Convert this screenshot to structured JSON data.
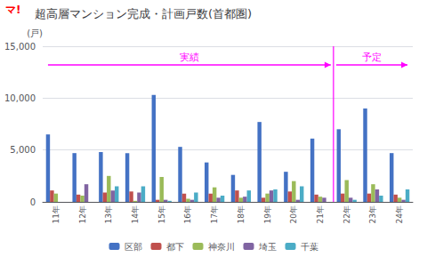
{
  "chart_data": {
    "type": "bar",
    "title": "超高層マンション完成・計画戸数(首都圏)",
    "ylabel": "(戸)",
    "categories": [
      "11年",
      "12年",
      "13年",
      "14年",
      "15年",
      "16年",
      "17年",
      "18年",
      "19年",
      "20年",
      "21年",
      "22年",
      "23年",
      "24年"
    ],
    "series": [
      {
        "name": "区部",
        "color": "#4472C4",
        "values": [
          6500,
          4700,
          4800,
          4700,
          10300,
          5300,
          3800,
          2600,
          7700,
          2900,
          6100,
          7000,
          9000,
          4700
        ]
      },
      {
        "name": "都下",
        "color": "#C0504D",
        "values": [
          1100,
          700,
          900,
          1000,
          200,
          800,
          800,
          1100,
          400,
          1000,
          700,
          800,
          800,
          700
        ]
      },
      {
        "name": "神奈川",
        "color": "#9BBB59",
        "values": [
          800,
          600,
          2500,
          100,
          2400,
          300,
          1400,
          400,
          800,
          2000,
          500,
          2100,
          1700,
          400
        ]
      },
      {
        "name": "埼玉",
        "color": "#8064A2",
        "values": [
          0,
          1700,
          1100,
          900,
          200,
          200,
          400,
          500,
          1100,
          200,
          400,
          400,
          1200,
          200
        ]
      },
      {
        "name": "千葉",
        "color": "#4BACC6",
        "values": [
          0,
          0,
          1500,
          1500,
          100,
          900,
          600,
          1100,
          1200,
          1500,
          0,
          200,
          600,
          1200
        ]
      }
    ],
    "ylim": [
      0,
      15000
    ],
    "yticks": [
      0,
      {
        "value": 5000,
        "label": "5,000"
      },
      {
        "value": 10000,
        "label": "10,000"
      },
      {
        "value": 15000,
        "label": "15,000"
      }
    ],
    "grid": true,
    "legend": "bottom",
    "annotations": [
      {
        "text": "マ!",
        "color": "#FF0000"
      },
      {
        "text": "実績",
        "color": "#FF00FF",
        "span": [
          "11年",
          "21年"
        ]
      },
      {
        "text": "予定",
        "color": "#FF00FF",
        "span": [
          "22年",
          "24年"
        ]
      }
    ]
  }
}
